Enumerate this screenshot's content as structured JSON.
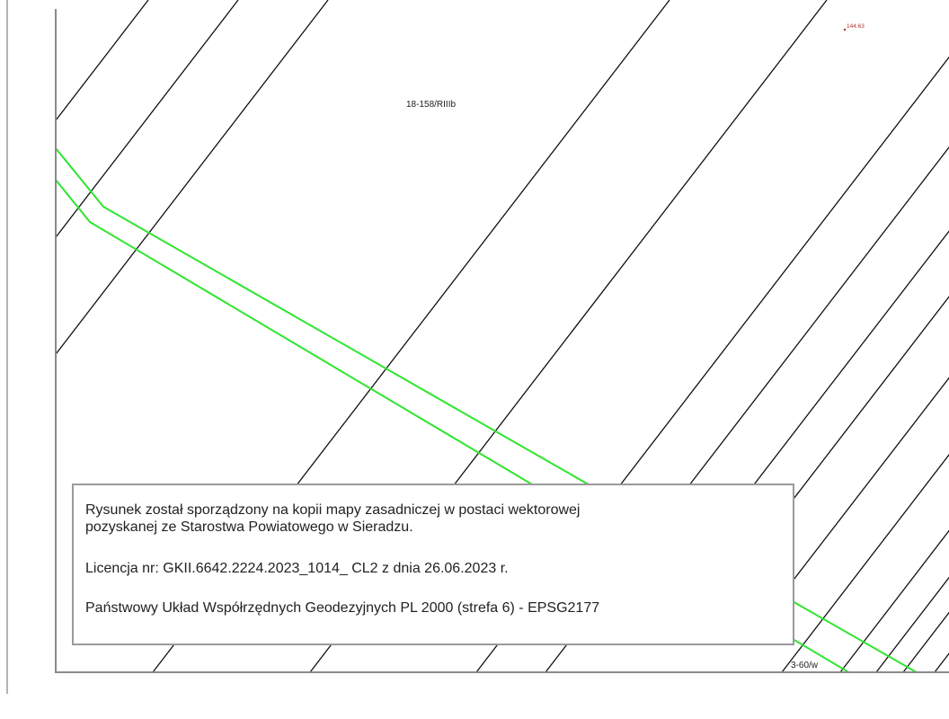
{
  "colors": {
    "utility_line": "#2ee52e",
    "height_point": "#b03030",
    "boundary_line": "#111111",
    "frame": "#8a8a8a"
  },
  "labels": {
    "parcel_top": "18-158/RIIIb",
    "height_point": "144.63",
    "parcel_bottom": "3-60/w"
  },
  "info_box": {
    "line1": "Rysunek został sporządzony na kopii mapy zasadniczej w postaci wektorowej",
    "line2": "pozyskanej ze Starostwa Powiatowego w Sieradzu.",
    "license": "Licencja nr: GKII.6642.2224.2023_1014_ CL2 z dnia 26.06.2023 r.",
    "crs": "Państwowy Układ Współrzędnych Geodezyjnych PL 2000 (strefa 6) - EPSG2177"
  }
}
